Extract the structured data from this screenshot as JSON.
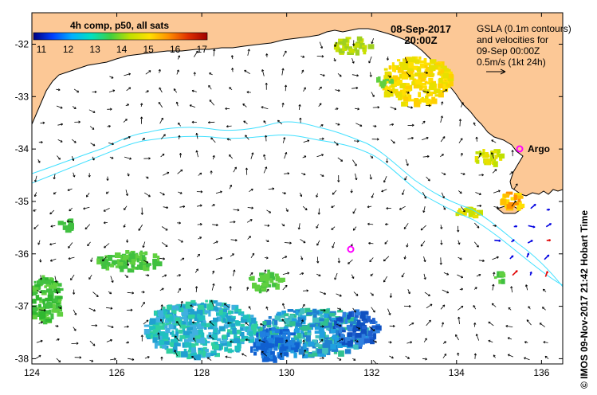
{
  "map": {
    "colorbar": {
      "title": "4h comp, p50, all sats",
      "tick_labels": [
        "11",
        "12",
        "13",
        "14",
        "15",
        "16",
        "17"
      ],
      "range": [
        11,
        17.5
      ],
      "gradient": [
        "#000080",
        "#0040ff",
        "#00b0ff",
        "#00e0c0",
        "#40d040",
        "#c0e000",
        "#ffe000",
        "#ff9000",
        "#e03000",
        "#a00000"
      ]
    },
    "date_line": "08-Sep-2017",
    "time_line": "20:00Z",
    "legend_lines": [
      "GSLA (0.1m contours)",
      "and velocities for",
      "09-Sep 00:00Z",
      "0.5m/s (1kt 24h)"
    ],
    "argo_label": "Argo",
    "side_credit": "© IMOS 09-Nov-2017 21:42 Hobart Time",
    "x_ticks": [
      "124",
      "126",
      "128",
      "130",
      "132",
      "134",
      "136"
    ],
    "y_ticks": [
      "-32",
      "-33",
      "-34",
      "-35",
      "-36",
      "-37",
      "-38"
    ],
    "lon_range": [
      124,
      136.5
    ],
    "lat_range": [
      -38.1,
      -31.4
    ],
    "colors": {
      "land": "#fcc896",
      "ocean": "#ffffff",
      "contour": "#40e0ff",
      "argo": "#ff00ff",
      "arrow": "#000000",
      "positive_velocity": "#e00000",
      "negative_velocity": "#0000e0"
    }
  }
}
